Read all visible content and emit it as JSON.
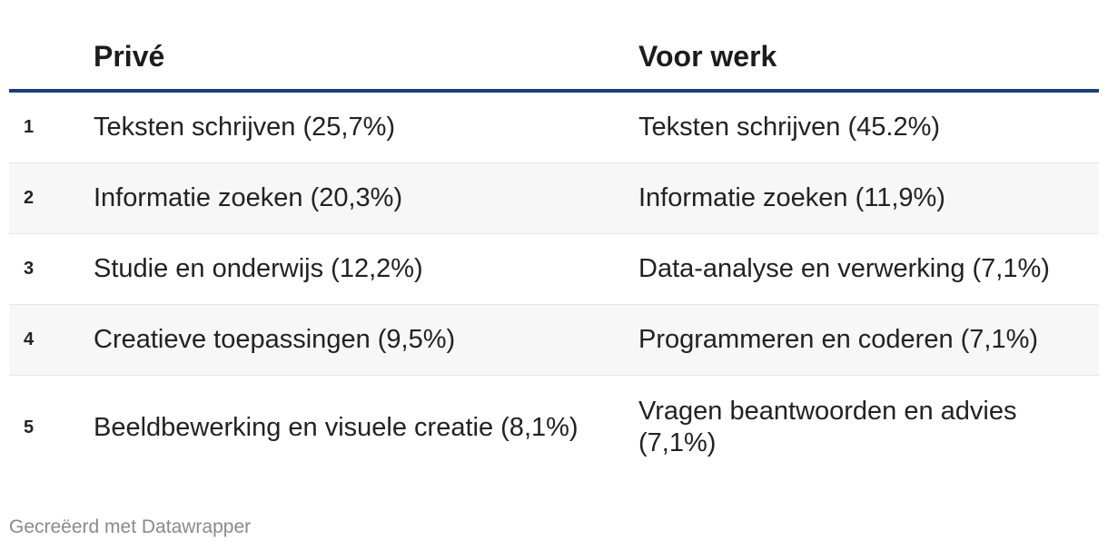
{
  "table": {
    "headers": {
      "rank": "",
      "private": "Privé",
      "work": "Voor werk"
    },
    "rows": [
      {
        "rank": "1",
        "private": "Teksten schrijven (25,7%)",
        "work": "Teksten schrijven (45.2%)"
      },
      {
        "rank": "2",
        "private": "Informatie zoeken (20,3%)",
        "work": "Informatie zoeken (11,9%)"
      },
      {
        "rank": "3",
        "private": "Studie en onderwijs (12,2%)",
        "work": "Data-analyse en verwerking (7,1%)"
      },
      {
        "rank": "4",
        "private": "Creatieve toepassingen (9,5%)",
        "work": "Programmeren en coderen (7,1%)"
      },
      {
        "rank": "5",
        "private": "Beeldbewerking en visuele creatie (8,1%)",
        "work": "Vragen beantwoorden en advies (7,1%)"
      }
    ]
  },
  "footer": {
    "credit": "Gecreëerd met Datawrapper"
  },
  "colors": {
    "header_rule": "#1d3f73",
    "row_shade": "#f7f7f7",
    "text": "#222222",
    "footer_text": "#8a8a8a"
  }
}
